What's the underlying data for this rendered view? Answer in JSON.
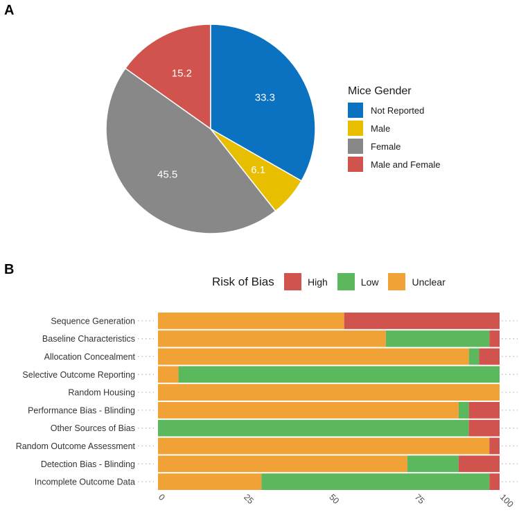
{
  "panels": {
    "a": "A",
    "b": "B"
  },
  "chart_data": [
    {
      "type": "pie",
      "legend_title": "Mice Gender",
      "categories": [
        "Not Reported",
        "Male",
        "Female",
        "Male and Female"
      ],
      "values": [
        33.3,
        6.1,
        45.5,
        15.2
      ],
      "labels": [
        "33.3",
        "6.1",
        "45.5",
        "15.2"
      ],
      "colors": [
        "#0a72c1",
        "#e8be00",
        "#888888",
        "#d0534e"
      ],
      "draw_order": [
        3,
        2,
        1,
        0
      ],
      "legend_position": "right"
    },
    {
      "type": "bar",
      "orientation": "horizontal",
      "stacked": true,
      "legend_title": "Risk of Bias",
      "legend_position": "top",
      "categories": [
        "Sequence Generation",
        "Baseline Characteristics",
        "Allocation Concealment",
        "Selective Outcome Reporting",
        "Random Housing",
        "Performance Bias - Blinding",
        "Other Sources of Bias",
        "Random Outcome Assessment",
        "Detection Bias - Blinding",
        "Incomplete Outcome Data"
      ],
      "series": [
        {
          "name": "High",
          "color": "#d0534e",
          "values": [
            45.5,
            3,
            6,
            0,
            0,
            9,
            9,
            3,
            12,
            3
          ]
        },
        {
          "name": "Low",
          "color": "#5cb85c",
          "values": [
            0,
            30.3,
            3,
            94,
            0,
            3,
            91,
            0,
            15,
            66.7
          ]
        },
        {
          "name": "Unclear",
          "color": "#f0a237",
          "values": [
            54.5,
            66.7,
            91,
            6,
            100,
            88,
            0,
            97,
            73,
            30.3
          ]
        }
      ],
      "stack_order": [
        "Unclear",
        "Low",
        "High"
      ],
      "legend_order": [
        "High",
        "Low",
        "Unclear"
      ],
      "xlim": [
        0,
        100
      ],
      "xticks": [
        0,
        25,
        50,
        75,
        100
      ],
      "xlabel": "",
      "ylabel": ""
    }
  ]
}
